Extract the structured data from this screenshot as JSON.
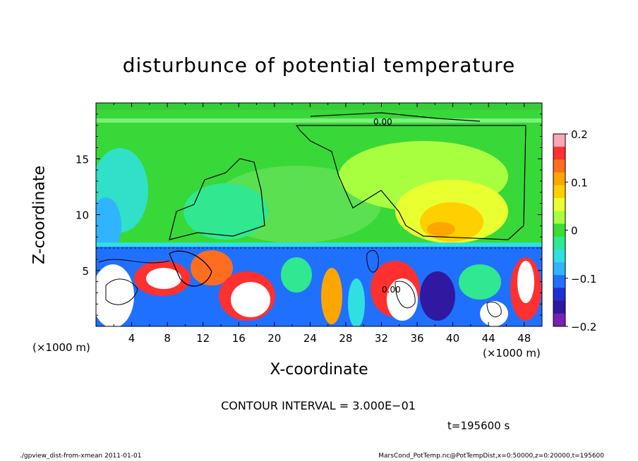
{
  "chart_data": {
    "type": "heatmap",
    "title": "disturbunce of potential temperature",
    "xlabel": "X-coordinate",
    "ylabel": "Z-coordinate",
    "x_unit_left": "(×1000 m)",
    "x_unit_right": "(×1000 m)",
    "xlim": [
      0,
      50
    ],
    "ylim": [
      0,
      20
    ],
    "x_ticks": [
      4,
      8,
      12,
      16,
      20,
      24,
      28,
      32,
      36,
      40,
      44,
      48
    ],
    "y_ticks": [
      5,
      10,
      15
    ],
    "colorbar": {
      "min": -0.2,
      "max": 0.2,
      "ticks": [
        "0.2",
        "0.1",
        "0",
        "−0.1",
        "−0.2"
      ],
      "colors": [
        "#f9a8b4",
        "#ff3030",
        "#ff6e1e",
        "#ffa500",
        "#ffd000",
        "#e8ff30",
        "#a8ff40",
        "#3cdc30",
        "#30e890",
        "#30e0e0",
        "#30b4ff",
        "#2070ff",
        "#2030d0",
        "#3018a0",
        "#7a20b4"
      ]
    },
    "contour_labels": [
      "0.00",
      "0.00"
    ],
    "contour_interval": "CONTOUR INTERVAL = 3.000E−01",
    "time": "t=195600 s"
  },
  "footer": {
    "left": "./gpview_dist-from-xmean   2011-01-01",
    "right": "MarsCond_PotTemp.nc@PotTempDist,x=0:50000,z=0:20000,t=195600"
  }
}
